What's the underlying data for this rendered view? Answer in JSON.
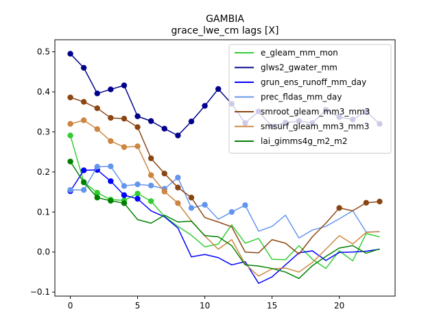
{
  "chart_data": {
    "type": "line",
    "title": "GAMBIA",
    "subtitle": "grace_lwe_cm lags [X]",
    "xlabel": "",
    "ylabel": "",
    "xlim": [
      -1.15,
      24.15
    ],
    "ylim": [
      -0.11,
      0.53
    ],
    "xticks": [
      0,
      5,
      10,
      15,
      20
    ],
    "yticks": [
      -0.1,
      0.0,
      0.1,
      0.2,
      0.3,
      0.4,
      0.5
    ],
    "ytick_labels": [
      "−0.1",
      "0.0",
      "0.1",
      "0.2",
      "0.3",
      "0.4",
      "0.5"
    ],
    "x": [
      0,
      1,
      2,
      3,
      4,
      5,
      6,
      7,
      8,
      9,
      10,
      11,
      12,
      13,
      14,
      15,
      16,
      17,
      18,
      19,
      20,
      21,
      22,
      23
    ],
    "legend_position": "top-right",
    "series": [
      {
        "name": "e_gleam_mm_mon",
        "color": "#32cd32",
        "values": [
          0.291,
          0.175,
          0.148,
          0.131,
          0.129,
          0.146,
          0.127,
          0.089,
          0.064,
          0.042,
          0.013,
          0.02,
          0.068,
          0.022,
          0.034,
          -0.018,
          -0.019,
          0.016,
          -0.018,
          -0.041,
          0.003,
          -0.022,
          0.046,
          0.038
        ],
        "markers": [
          0,
          1,
          2,
          3,
          4,
          5,
          6
        ]
      },
      {
        "name": "glws2_gwater_mm",
        "color": "#00008b",
        "values": [
          0.495,
          0.46,
          0.396,
          0.406,
          0.416,
          0.339,
          0.327,
          0.308,
          0.291,
          0.326,
          0.365,
          0.407,
          0.37,
          0.322,
          0.351,
          0.313,
          0.323,
          0.327,
          0.322,
          0.355,
          0.337,
          0.331,
          0.351,
          0.32
        ],
        "markers": [
          0,
          1,
          2,
          3,
          4,
          5,
          6,
          7,
          8,
          9,
          10,
          11,
          12,
          13,
          14,
          15,
          16,
          17,
          18,
          19,
          20,
          21,
          22,
          23
        ]
      },
      {
        "name": "grun_ens_runoff_mm_day",
        "color": "#0000ff",
        "values": [
          0.152,
          0.204,
          0.205,
          0.177,
          0.142,
          0.133,
          0.103,
          0.088,
          0.06,
          -0.012,
          -0.006,
          -0.014,
          -0.032,
          -0.024,
          -0.078,
          -0.062,
          -0.032,
          -0.002,
          0.003,
          -0.021,
          -0.001,
          0.0,
          0.002,
          0.007
        ],
        "markers": [
          0,
          1,
          2,
          3,
          4,
          5
        ]
      },
      {
        "name": "prec_fldas_mm_day",
        "color": "#6495ed",
        "values": [
          0.155,
          0.155,
          0.213,
          0.214,
          0.165,
          0.169,
          0.166,
          0.158,
          0.186,
          0.11,
          0.118,
          0.082,
          0.1,
          0.117,
          0.052,
          0.064,
          0.092,
          0.035,
          0.055,
          0.064,
          0.083,
          0.103,
          0.05,
          0.051
        ],
        "markers": [
          0,
          1,
          2,
          3,
          4,
          5,
          6,
          7,
          8,
          9,
          10,
          12,
          13
        ]
      },
      {
        "name": "smroot_gleam_mm3_mm3",
        "color": "#8b4513",
        "values": [
          0.386,
          0.375,
          0.359,
          0.335,
          0.333,
          0.312,
          0.234,
          0.196,
          0.161,
          0.136,
          0.086,
          0.075,
          0.063,
          0.0,
          -0.002,
          0.031,
          0.022,
          -0.005,
          0.038,
          0.072,
          0.11,
          0.103,
          0.123,
          0.126
        ],
        "markers": [
          0,
          1,
          2,
          3,
          4,
          5,
          6,
          7,
          8,
          9,
          20,
          22,
          23
        ]
      },
      {
        "name": "smsurf_gleam_mm3_mm3",
        "color": "#cd853f",
        "values": [
          0.32,
          0.329,
          0.307,
          0.277,
          0.262,
          0.264,
          0.192,
          0.151,
          0.122,
          0.078,
          0.04,
          0.007,
          0.031,
          -0.03,
          -0.06,
          -0.042,
          -0.04,
          -0.05,
          -0.026,
          0.007,
          0.041,
          0.02,
          0.049,
          0.051
        ],
        "markers": [
          0,
          1,
          2,
          3,
          4,
          5,
          6,
          7,
          8
        ]
      },
      {
        "name": "lai_gimms4g_m2_m2",
        "color": "#008000",
        "values": [
          0.226,
          0.174,
          0.136,
          0.128,
          0.122,
          0.081,
          0.072,
          0.092,
          0.075,
          0.077,
          0.041,
          0.038,
          0.016,
          -0.032,
          -0.035,
          -0.041,
          -0.05,
          -0.066,
          -0.034,
          -0.011,
          0.01,
          0.016,
          -0.003,
          0.008
        ],
        "markers": [
          0,
          1,
          2,
          3,
          4
        ]
      }
    ]
  }
}
